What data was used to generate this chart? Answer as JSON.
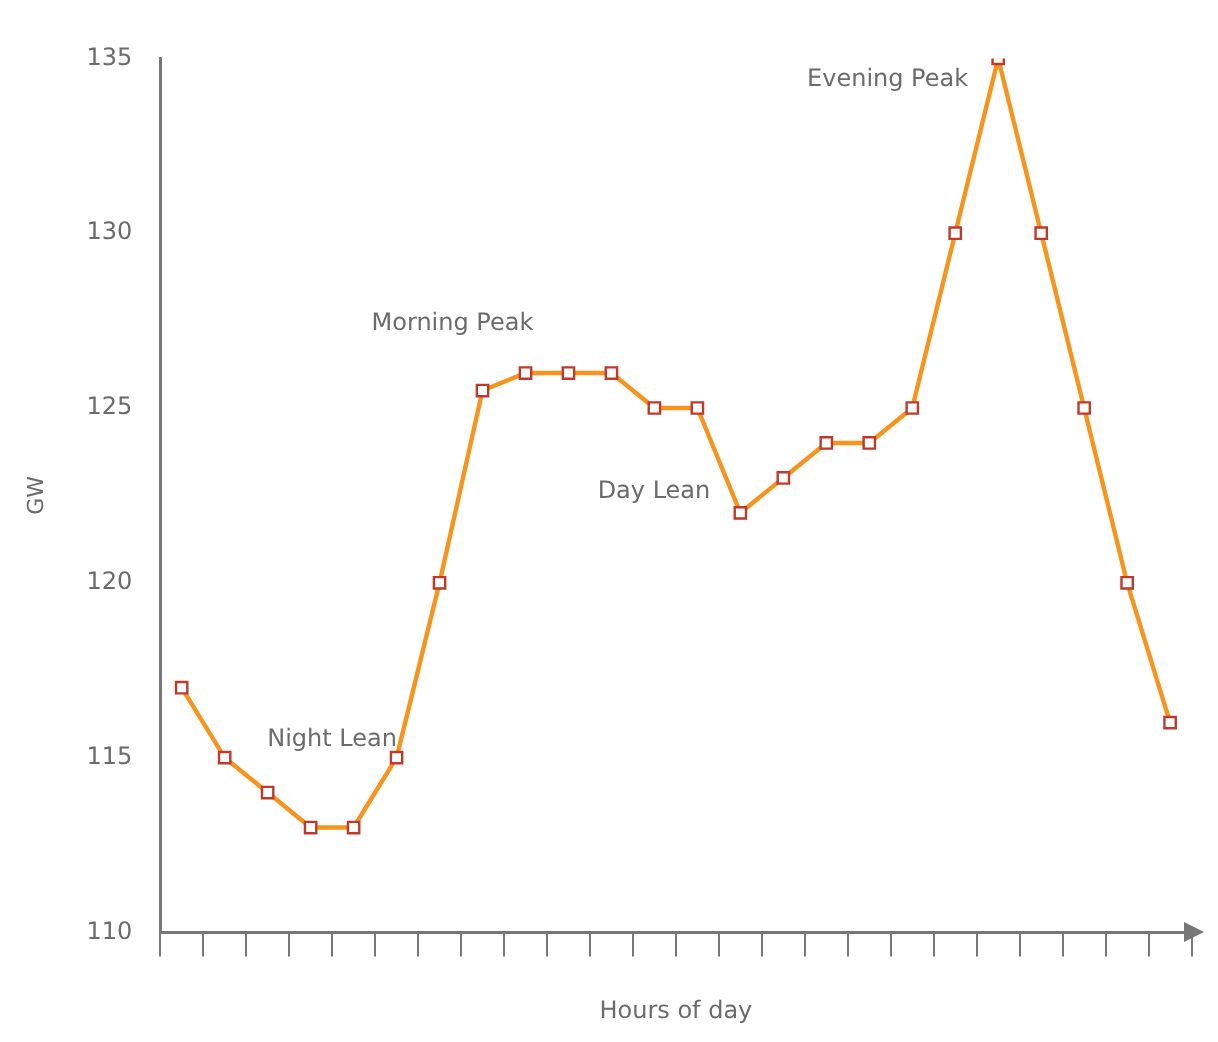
{
  "chart_data": {
    "type": "line",
    "xlabel": "Hours of day",
    "ylabel": "GW",
    "categories": [
      null,
      null,
      null,
      null,
      null,
      null,
      null,
      null,
      null,
      null,
      null,
      null,
      null,
      null,
      null,
      null,
      null,
      null,
      null,
      null,
      null,
      null,
      null,
      null
    ],
    "series": [
      {
        "color": "#f7941d",
        "values": [
          117,
          115,
          114,
          113,
          113,
          115,
          120,
          125.5,
          126,
          126,
          126,
          125,
          125,
          122,
          123,
          124,
          124,
          125,
          130,
          135,
          130,
          125,
          120,
          116
        ]
      }
    ],
    "ylim": [
      110,
      135
    ],
    "yticks": [
      110,
      115,
      120,
      125,
      130,
      135
    ],
    "grid": false,
    "legend": false,
    "marker": "square",
    "line_style": "solid",
    "annotations": [
      "Night Lean",
      "Morning Peak",
      "Day Lean",
      "Evening Peak"
    ]
  }
}
